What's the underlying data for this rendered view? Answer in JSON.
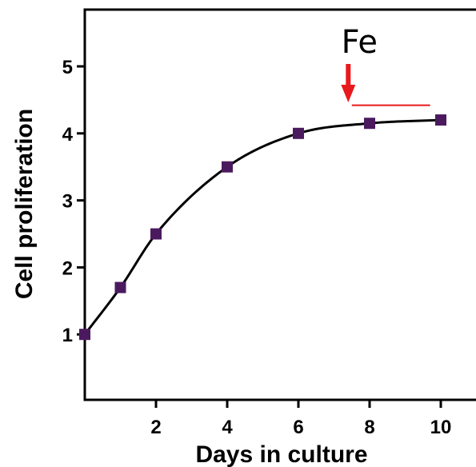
{
  "chart_data": {
    "type": "line",
    "xlabel": "Days in culture",
    "ylabel": "Cell proliferation",
    "xlim": [
      0,
      10.5
    ],
    "ylim": [
      0,
      6
    ],
    "xticks": [
      2,
      4,
      6,
      8,
      10
    ],
    "yticks": [
      1,
      2,
      3,
      4,
      5
    ],
    "series": [
      {
        "x": [
          0,
          1,
          2,
          4,
          6,
          8,
          10
        ],
        "y": [
          1.0,
          1.7,
          2.5,
          3.5,
          4.0,
          4.15,
          4.2
        ],
        "marker": "square",
        "marker_color": "#4b1a5e",
        "line_color": "#000000",
        "fit": "smooth"
      }
    ],
    "annotations": [
      {
        "text": "Fe",
        "arrow_color": "#e8191c",
        "arrow_x": 7.4,
        "bar_x": [
          7.5,
          9.7
        ],
        "bar_y": 4.42,
        "bar_color": "#e8191c"
      }
    ],
    "grid": false,
    "legend": "none"
  }
}
